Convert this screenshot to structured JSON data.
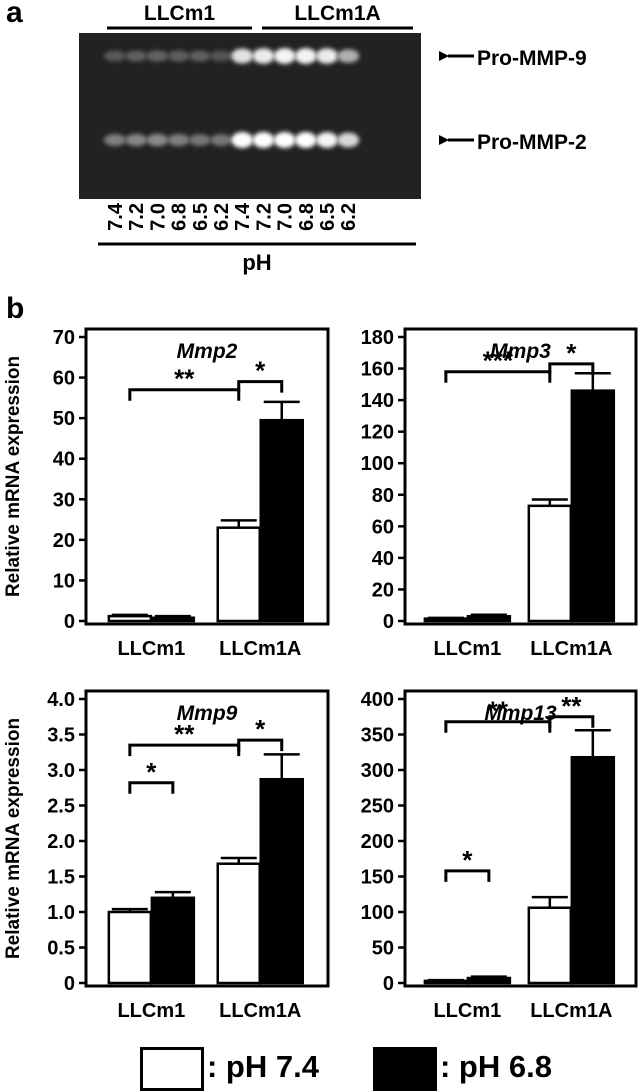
{
  "panels": {
    "a": "a",
    "b": "b"
  },
  "gel": {
    "groups": [
      "LLCm1",
      "LLCm1A"
    ],
    "lanes": [
      "7.4",
      "7.2",
      "7.0",
      "6.8",
      "6.5",
      "6.2",
      "7.4",
      "7.2",
      "7.0",
      "6.8",
      "6.5",
      "6.2"
    ],
    "axis_label": "pH",
    "bands": [
      {
        "label": "Pro-MMP-9",
        "intensities": [
          0.15,
          0.18,
          0.2,
          0.18,
          0.18,
          0.14,
          0.85,
          0.9,
          0.95,
          0.95,
          0.9,
          0.6
        ]
      },
      {
        "label": "Pro-MMP-2",
        "intensities": [
          0.35,
          0.38,
          0.4,
          0.35,
          0.3,
          0.3,
          1.0,
          1.0,
          1.0,
          1.0,
          0.95,
          0.8
        ]
      }
    ]
  },
  "chart_data": [
    {
      "type": "bar",
      "title": "Mmp2",
      "ylabel": "Relative mRNA expression",
      "categories": [
        "LLCm1",
        "LLCm1A"
      ],
      "ylim": [
        0,
        70
      ],
      "yticks": [
        "0",
        "10",
        "20",
        "30",
        "40",
        "50",
        "60",
        "70"
      ],
      "series": [
        {
          "name": "pH 7.4",
          "values": [
            1.2,
            23
          ],
          "errors": [
            0.3,
            1.8
          ]
        },
        {
          "name": "pH 6.8",
          "values": [
            0.8,
            49.5
          ],
          "errors": [
            0.4,
            4.5
          ]
        }
      ],
      "significance": [
        {
          "label": "**",
          "from": "LLCm1 pH 7.4",
          "to": "LLCm1A pH 7.4",
          "level": 57
        },
        {
          "label": "*",
          "from": "LLCm1A pH 7.4",
          "to": "LLCm1A pH 6.8",
          "level": 59
        }
      ]
    },
    {
      "type": "bar",
      "title": "Mmp3",
      "ylabel": "",
      "categories": [
        "LLCm1",
        "LLCm1A"
      ],
      "ylim": [
        0,
        180
      ],
      "yticks": [
        "0",
        "20",
        "40",
        "60",
        "80",
        "100",
        "120",
        "140",
        "160",
        "180"
      ],
      "series": [
        {
          "name": "pH 7.4",
          "values": [
            1.5,
            73
          ],
          "errors": [
            0.5,
            4
          ]
        },
        {
          "name": "pH 6.8",
          "values": [
            3,
            146
          ],
          "errors": [
            1,
            11
          ]
        }
      ],
      "significance": [
        {
          "label": "***",
          "from": "LLCm1 pH 7.4",
          "to": "LLCm1A pH 7.4",
          "level": 158
        },
        {
          "label": "*",
          "from": "LLCm1A pH 7.4",
          "to": "LLCm1A pH 6.8",
          "level": 163
        }
      ]
    },
    {
      "type": "bar",
      "title": "Mmp9",
      "ylabel": "Relative mRNA expression",
      "categories": [
        "LLCm1",
        "LLCm1A"
      ],
      "ylim": [
        0,
        4.0
      ],
      "yticks": [
        "0",
        "0.5",
        "1.0",
        "1.5",
        "2.0",
        "2.5",
        "3.0",
        "3.5",
        "4.0"
      ],
      "series": [
        {
          "name": "pH 7.4",
          "values": [
            1.0,
            1.68
          ],
          "errors": [
            0.04,
            0.08
          ]
        },
        {
          "name": "pH 6.8",
          "values": [
            1.2,
            2.87
          ],
          "errors": [
            0.08,
            0.35
          ]
        }
      ],
      "significance": [
        {
          "label": "*",
          "from": "LLCm1 pH 7.4",
          "to": "LLCm1 pH 6.8",
          "level": 2.82
        },
        {
          "label": "**",
          "from": "LLCm1 pH 7.4",
          "to": "LLCm1A pH 7.4",
          "level": 3.35
        },
        {
          "label": "*",
          "from": "LLCm1A pH 7.4",
          "to": "LLCm1A pH 6.8",
          "level": 3.42
        }
      ]
    },
    {
      "type": "bar",
      "title": "Mmp13",
      "ylabel": "",
      "categories": [
        "LLCm1",
        "LLCm1A"
      ],
      "ylim": [
        0,
        400
      ],
      "yticks": [
        "0",
        "50",
        "100",
        "150",
        "200",
        "250",
        "300",
        "350",
        "400"
      ],
      "series": [
        {
          "name": "pH 7.4",
          "values": [
            3,
            106
          ],
          "errors": [
            1,
            15
          ]
        },
        {
          "name": "pH 6.8",
          "values": [
            7,
            318
          ],
          "errors": [
            2,
            38
          ]
        }
      ],
      "significance": [
        {
          "label": "*",
          "from": "LLCm1 pH 7.4",
          "to": "LLCm1 pH 6.8",
          "level": 158
        },
        {
          "label": "**",
          "from": "LLCm1 pH 7.4",
          "to": "LLCm1A pH 7.4",
          "level": 368
        },
        {
          "label": "**",
          "from": "LLCm1A pH 7.4",
          "to": "LLCm1A pH 6.8",
          "level": 375
        }
      ]
    }
  ],
  "legend": [
    {
      "label": ": pH 7.4",
      "color": "#ffffff"
    },
    {
      "label": ": pH 6.8",
      "color": "#000000"
    }
  ]
}
